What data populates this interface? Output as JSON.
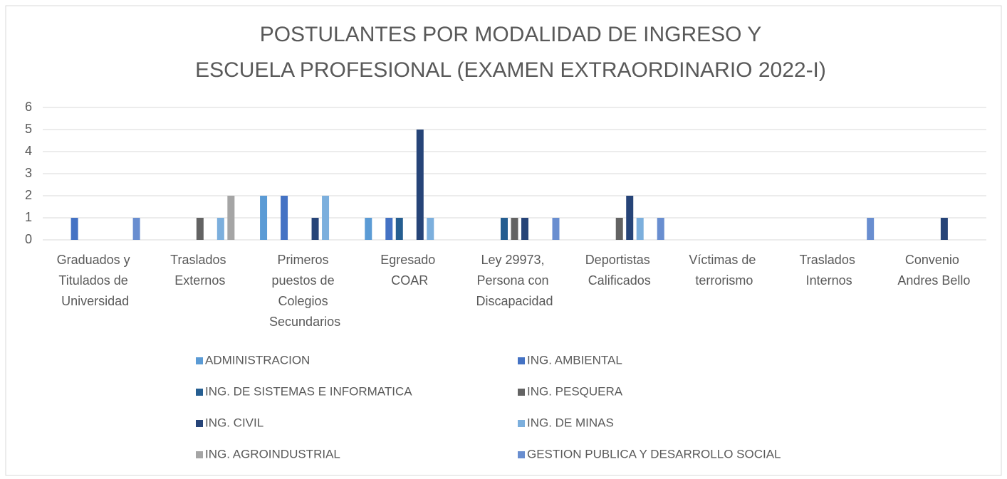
{
  "chart_data": {
    "type": "bar",
    "title": [
      "POSTULANTES POR MODALIDAD DE INGRESO Y",
      "ESCUELA PROFESIONAL (EXAMEN EXTRAORDINARIO 2022-I)"
    ],
    "categories": [
      "Graduados y Titulados de Universidad",
      "Traslados Externos",
      "Primeros puestos de Colegios Secundarios",
      "Egresado COAR",
      "Ley 29973, Persona con Discapacidad",
      "Deportistas Calificados",
      "Víctimas de terrorismo",
      "Traslados Internos",
      "Convenio Andres Bello"
    ],
    "series": [
      {
        "name": "ADMINISTRACION",
        "color": "#5b9bd5",
        "values": [
          0,
          0,
          2,
          1,
          0,
          0,
          0,
          0,
          0
        ]
      },
      {
        "name": "ING. AMBIENTAL",
        "color": "#4472c4",
        "values": [
          1,
          0,
          2,
          1,
          0,
          0,
          0,
          0,
          0
        ]
      },
      {
        "name": "ING. DE SISTEMAS E INFORMATICA",
        "color": "#255e91",
        "values": [
          0,
          0,
          0,
          1,
          1,
          0,
          0,
          0,
          0
        ]
      },
      {
        "name": "ING. PESQUERA",
        "color": "#636363",
        "values": [
          0,
          1,
          0,
          0,
          1,
          1,
          0,
          0,
          0
        ]
      },
      {
        "name": "ING. CIVIL",
        "color": "#264478",
        "values": [
          0,
          0,
          1,
          5,
          1,
          2,
          0,
          0,
          1
        ]
      },
      {
        "name": "ING. DE MINAS",
        "color": "#7cafdd",
        "values": [
          0,
          1,
          2,
          1,
          0,
          1,
          0,
          0,
          0
        ]
      },
      {
        "name": "ING. AGROINDUSTRIAL",
        "color": "#a5a5a5",
        "values": [
          0,
          2,
          0,
          0,
          0,
          0,
          0,
          0,
          0
        ]
      },
      {
        "name": "GESTION PUBLICA Y DESARROLLO SOCIAL",
        "color": "#698ed0",
        "values": [
          1,
          0,
          0,
          0,
          1,
          1,
          0,
          1,
          0
        ]
      }
    ],
    "ylim": [
      0,
      6
    ],
    "yticks": [
      0,
      1,
      2,
      3,
      4,
      5,
      6
    ],
    "grid": true,
    "legend": "bottom"
  }
}
